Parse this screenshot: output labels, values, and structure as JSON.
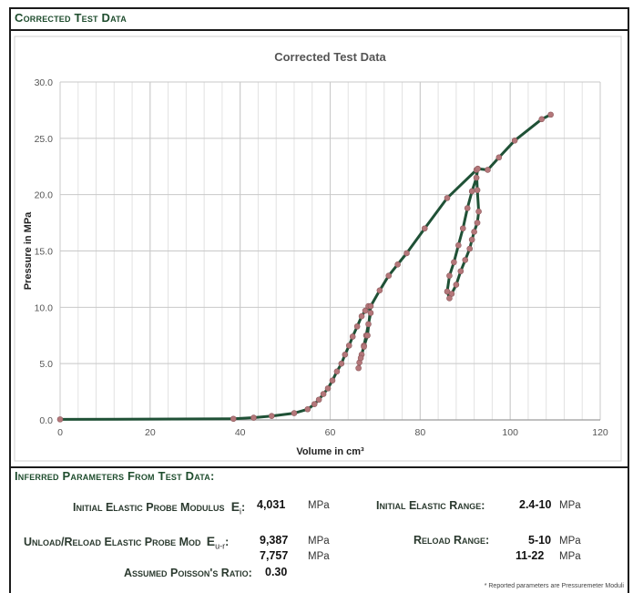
{
  "header": {
    "title": "Corrected Test Data"
  },
  "chart_data": {
    "type": "line",
    "title": "Corrected Test Data",
    "xlabel": "Volume in cm³",
    "ylabel": "Pressure in MPa",
    "xlim": [
      0,
      120
    ],
    "ylim": [
      0,
      30
    ],
    "xticks": [
      0,
      20,
      40,
      60,
      80,
      100,
      120
    ],
    "yticks": [
      0.0,
      5.0,
      10.0,
      15.0,
      20.0,
      25.0,
      30.0
    ],
    "xtick_labels": [
      "0",
      "20",
      "40",
      "60",
      "80",
      "100",
      "120"
    ],
    "ytick_labels": [
      "0.0",
      "5.0",
      "10.0",
      "15.0",
      "20.0",
      "25.0",
      "30.0"
    ],
    "grid": true,
    "line_color": "#1f5136",
    "marker_color": "#b4777a",
    "series": [
      {
        "x": [
          0,
          38.5,
          43,
          47,
          52,
          55,
          56.5,
          57.5,
          58.5,
          59.5,
          60.5,
          61.5,
          62.5,
          63.3,
          64.2,
          65,
          66,
          67,
          67.8,
          68.5,
          69,
          68.5,
          68,
          67.5,
          67,
          66.5,
          66.3,
          66.8,
          67.5,
          68.3,
          69,
          71,
          73,
          75,
          77,
          81,
          86,
          92.5,
          92.7,
          93,
          92.7,
          92,
          91.5,
          91,
          90,
          89,
          88,
          87,
          86.5,
          86,
          86.5,
          87.5,
          88.5,
          89.5,
          90.5,
          91.5,
          92.5,
          92.8,
          95,
          97.5,
          101,
          107,
          109
        ],
        "y": [
          0.05,
          0.1,
          0.2,
          0.35,
          0.6,
          0.95,
          1.4,
          1.8,
          2.3,
          2.8,
          3.5,
          4.3,
          5.0,
          5.8,
          6.6,
          7.4,
          8.3,
          9.2,
          9.7,
          10.1,
          9.5,
          8.5,
          7.5,
          6.6,
          5.8,
          5.1,
          4.6,
          5.5,
          6.5,
          7.5,
          10.1,
          11.5,
          12.8,
          13.8,
          14.8,
          17.0,
          19.7,
          22.2,
          20.4,
          18.5,
          17.5,
          16.7,
          16.0,
          15.2,
          14.2,
          13.2,
          12.0,
          11.2,
          10.8,
          11.4,
          12.8,
          14.0,
          15.5,
          17.0,
          18.8,
          20.3,
          21.5,
          22.3,
          22.2,
          23.3,
          24.8,
          26.7,
          27.1
        ]
      }
    ]
  },
  "params": {
    "heading": "Inferred Parameters From Test Data:",
    "initial_modulus_label": "Initial Elastic Probe Modulus",
    "initial_modulus_symbol": "E",
    "initial_modulus_sub": "i",
    "initial_modulus_value": "4,031",
    "unit_mpa": "MPa",
    "initial_range_label": "Initial Elastic Range:",
    "initial_range_value": "2.4-10",
    "unload_label": "Unload/Reload Elastic Probe Mod",
    "unload_symbol": "E",
    "unload_sub": "u-r",
    "unload_value_1": "9,387",
    "unload_value_2": "7,757",
    "reload_label": "Reload Range:",
    "reload_value_1": "5-10",
    "reload_value_2": "11-22",
    "poisson_label": "Assumed Poisson's Ratio:",
    "poisson_value": "0.30",
    "note": "* Reported parameters are Pressuremeter Moduli"
  }
}
